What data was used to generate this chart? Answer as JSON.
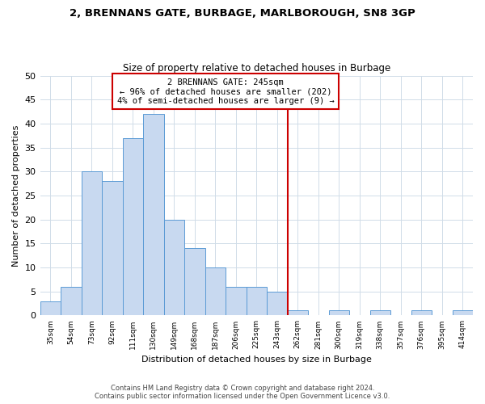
{
  "title": "2, BRENNANS GATE, BURBAGE, MARLBOROUGH, SN8 3GP",
  "subtitle": "Size of property relative to detached houses in Burbage",
  "xlabel": "Distribution of detached houses by size in Burbage",
  "ylabel": "Number of detached properties",
  "bin_labels": [
    "35sqm",
    "54sqm",
    "73sqm",
    "92sqm",
    "111sqm",
    "130sqm",
    "149sqm",
    "168sqm",
    "187sqm",
    "206sqm",
    "225sqm",
    "243sqm",
    "262sqm",
    "281sqm",
    "300sqm",
    "319sqm",
    "338sqm",
    "357sqm",
    "376sqm",
    "395sqm",
    "414sqm"
  ],
  "bar_values": [
    3,
    6,
    30,
    28,
    37,
    42,
    20,
    14,
    10,
    6,
    6,
    5,
    1,
    0,
    1,
    0,
    1,
    0,
    1,
    0,
    1
  ],
  "bar_color": "#c8d9f0",
  "bar_edge_color": "#5b9bd5",
  "grid_color": "#d0dce8",
  "reference_line_x_label": "243sqm",
  "reference_line_color": "#cc0000",
  "annotation_title": "2 BRENNANS GATE: 245sqm",
  "annotation_line1": "← 96% of detached houses are smaller (202)",
  "annotation_line2": "4% of semi-detached houses are larger (9) →",
  "annotation_box_color": "#cc0000",
  "ylim": [
    0,
    50
  ],
  "yticks": [
    0,
    5,
    10,
    15,
    20,
    25,
    30,
    35,
    40,
    45,
    50
  ],
  "footnote1": "Contains HM Land Registry data © Crown copyright and database right 2024.",
  "footnote2": "Contains public sector information licensed under the Open Government Licence v3.0.",
  "fig_width": 6.0,
  "fig_height": 5.0,
  "dpi": 100
}
